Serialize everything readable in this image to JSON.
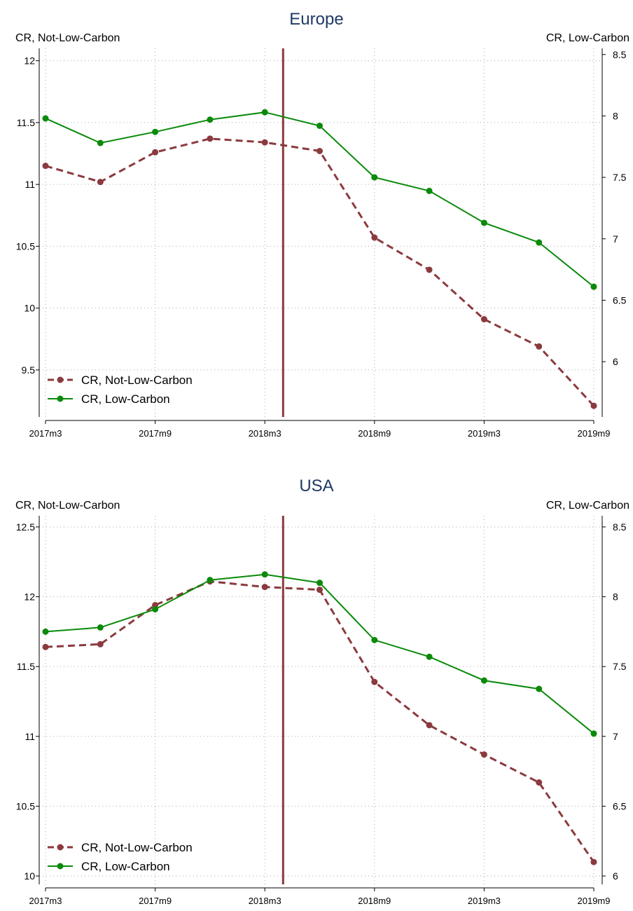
{
  "colors": {
    "not_low_carbon": "#8B3A3E",
    "low_carbon": "#0A8A0A",
    "vline": "#8B3A3E",
    "title": "#1F3A63",
    "axis": "#000000",
    "grid": "#AAAAAA"
  },
  "chart_data": [
    {
      "type": "line",
      "title": "Europe",
      "ylabel_left": "CR, Not-Low-Carbon",
      "ylabel_right": "CR, Low-Carbon",
      "x": [
        "2017m3",
        "2017m6",
        "2017m9",
        "2017m12",
        "2018m3",
        "2018m6",
        "2018m9",
        "2018m12",
        "2019m3",
        "2019m6",
        "2019m9"
      ],
      "xtick_labels": [
        "2017m3",
        "2017m9",
        "2018m3",
        "2018m9",
        "2019m3",
        "2019m9"
      ],
      "vline_x": "2018m4",
      "ylim_left": [
        9.12,
        12.1
      ],
      "yticks_left": [
        {
          "v": 9.5,
          "label": "9.5"
        },
        {
          "v": 10,
          "label": "10"
        },
        {
          "v": 10.5,
          "label": "10.5"
        },
        {
          "v": 11,
          "label": "11"
        },
        {
          "v": 11.5,
          "label": "11.5"
        },
        {
          "v": 12,
          "label": "12"
        }
      ],
      "ylim_right": [
        5.55,
        8.55
      ],
      "yticks_right": [
        {
          "v": 6,
          "label": "6"
        },
        {
          "v": 6.5,
          "label": "6.5"
        },
        {
          "v": 7,
          "label": "7"
        },
        {
          "v": 7.5,
          "label": "7.5"
        },
        {
          "v": 8,
          "label": "8"
        },
        {
          "v": 8.5,
          "label": "8.5"
        }
      ],
      "series": [
        {
          "name": "CR, Not-Low-Carbon",
          "axis": "left",
          "style": "dashed",
          "values": [
            11.15,
            11.02,
            11.26,
            11.37,
            11.34,
            11.27,
            10.57,
            10.31,
            9.91,
            9.69,
            9.21
          ]
        },
        {
          "name": "CR, Low-Carbon",
          "axis": "right",
          "style": "solid",
          "values": [
            7.98,
            7.78,
            7.87,
            7.97,
            8.03,
            7.92,
            7.5,
            7.39,
            7.13,
            6.97,
            6.61
          ]
        }
      ],
      "legend": "bottom-left"
    },
    {
      "type": "line",
      "title": "USA",
      "ylabel_left": "CR, Not-Low-Carbon",
      "ylabel_right": "CR, Low-Carbon",
      "x": [
        "2017m3",
        "2017m6",
        "2017m9",
        "2017m12",
        "2018m3",
        "2018m6",
        "2018m9",
        "2018m12",
        "2019m3",
        "2019m6",
        "2019m9"
      ],
      "xtick_labels": [
        "2017m3",
        "2017m9",
        "2018m3",
        "2018m9",
        "2019m3",
        "2019m9"
      ],
      "vline_x": "2018m4",
      "ylim_left": [
        9.94,
        12.58
      ],
      "yticks_left": [
        {
          "v": 10,
          "label": "10"
        },
        {
          "v": 10.5,
          "label": "10.5"
        },
        {
          "v": 11,
          "label": "11"
        },
        {
          "v": 11.5,
          "label": "11.5"
        },
        {
          "v": 12,
          "label": "12"
        },
        {
          "v": 12.5,
          "label": "12.5"
        }
      ],
      "ylim_right": [
        5.94,
        8.58
      ],
      "yticks_right": [
        {
          "v": 6,
          "label": "6"
        },
        {
          "v": 6.5,
          "label": "6.5"
        },
        {
          "v": 7,
          "label": "7"
        },
        {
          "v": 7.5,
          "label": "7.5"
        },
        {
          "v": 8,
          "label": "8"
        },
        {
          "v": 8.5,
          "label": "8.5"
        }
      ],
      "series": [
        {
          "name": "CR, Not-Low-Carbon",
          "axis": "left",
          "style": "dashed",
          "values": [
            11.64,
            11.66,
            11.94,
            12.11,
            12.07,
            12.05,
            11.39,
            11.08,
            10.87,
            10.67,
            10.1
          ]
        },
        {
          "name": "CR, Low-Carbon",
          "axis": "right",
          "style": "solid",
          "values": [
            7.75,
            7.78,
            7.91,
            8.12,
            8.16,
            8.1,
            7.69,
            7.57,
            7.4,
            7.34,
            7.02
          ]
        }
      ],
      "legend": "bottom-left"
    }
  ]
}
